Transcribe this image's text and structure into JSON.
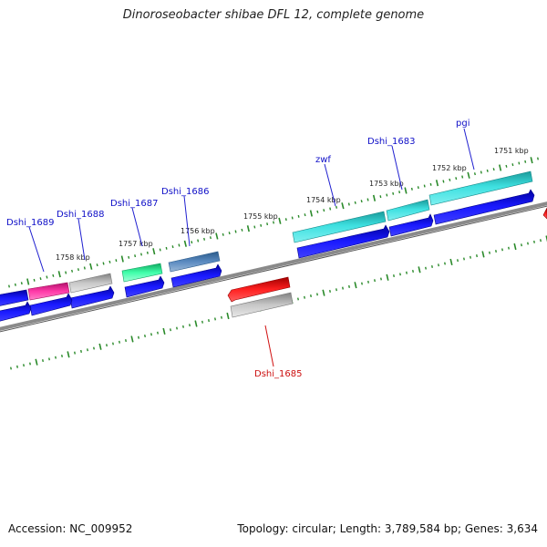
{
  "title": "Dinoroseobacter shibae DFL 12, complete genome",
  "footer": {
    "accession": "Accession: NC_009952",
    "summary": "Topology: circular; Length: 3,789,584 bp; Genes: 3,634"
  },
  "scale_labels": [
    "1751 kbp",
    "1752 kbp",
    "1753 kbp",
    "1754 kbp",
    "1755 kbp",
    "1756 kbp",
    "1757 kbp",
    "1758 kbp"
  ],
  "gene_labels": [
    "pgi",
    "Dshi_1683",
    "zwf",
    "Dshi_1686",
    "Dshi_1687",
    "Dshi_1688",
    "Dshi_1689",
    "Dshi_1685"
  ],
  "colors": {
    "tick": "#2a8a2a",
    "backbone": "#7a7a7a",
    "cds": "#1010e0",
    "teal_gene": "#22c8c8",
    "red_gene": "#e01010",
    "gray_gene": "#aaaaaa",
    "magenta_gene": "#e0208a",
    "green_gene": "#22e088",
    "steel_gene": "#4a7ab0",
    "label_blue": "#1010c8",
    "label_red": "#cc1010"
  }
}
